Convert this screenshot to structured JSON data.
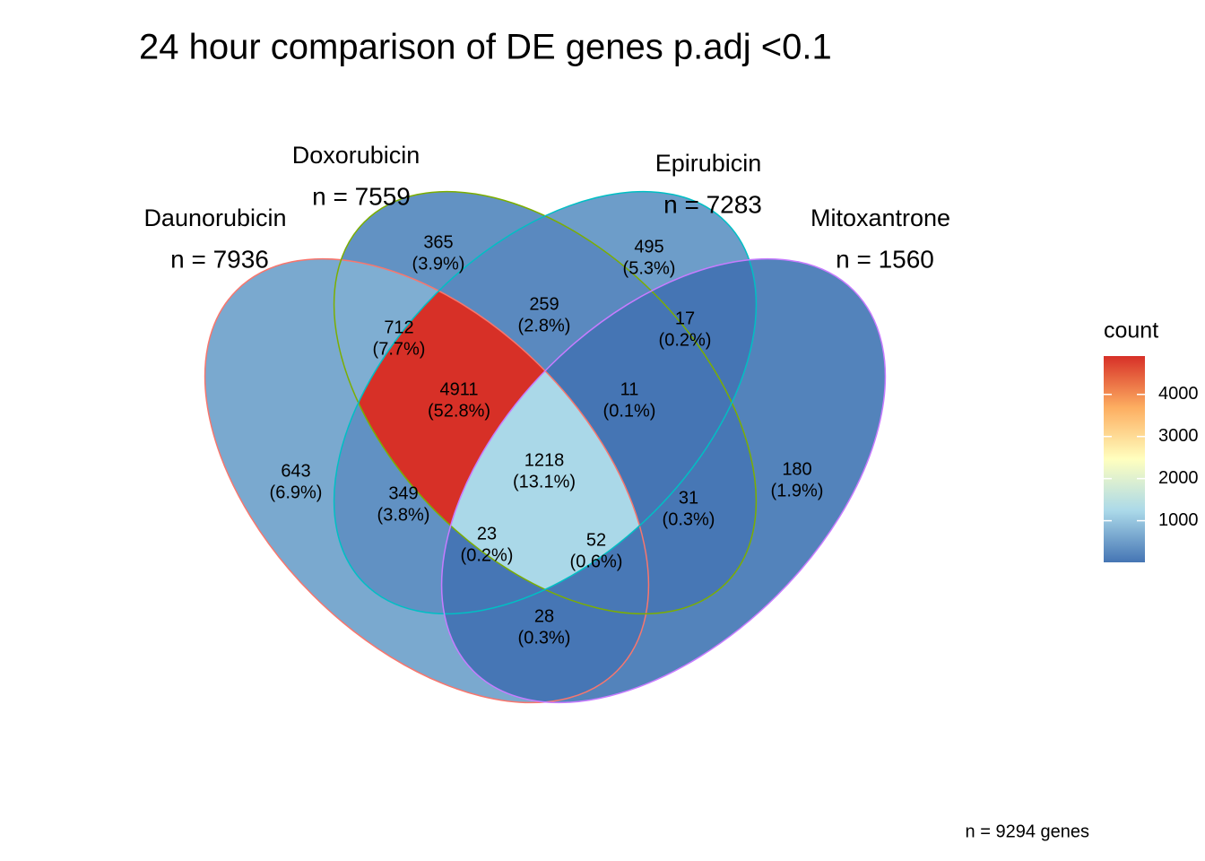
{
  "chart_data": {
    "type": "venn",
    "title": "24 hour comparison of DE genes p.adj <0.1",
    "sets": [
      {
        "name": "Daunorubicin",
        "size": {
          "value": 7936,
          "label": "n = 7936"
        },
        "color": "#f8766d"
      },
      {
        "name": "Doxorubicin",
        "size": {
          "value": 7559,
          "label": "n = 7559"
        },
        "color": "#7cae00"
      },
      {
        "name": "Epirubicin",
        "size": {
          "value": 7283,
          "label": "n = 7283"
        },
        "color": "#00bfc4"
      },
      {
        "name": "Mitoxantrone",
        "size": {
          "value": 1560,
          "label": "n = 1560"
        },
        "color": "#c77cff"
      }
    ],
    "regions": {
      "values": [
        643,
        365,
        495,
        180,
        712,
        259,
        17,
        349,
        31,
        4911,
        11,
        23,
        52,
        1218,
        28
      ],
      "percents": [
        {
          "value": 6.9,
          "label": "(6.9%)"
        },
        {
          "value": 3.9,
          "label": "(3.9%)"
        },
        {
          "value": 5.3,
          "label": "(5.3%)"
        },
        {
          "value": 1.9,
          "label": "(1.9%)"
        },
        {
          "value": 7.7,
          "label": "(7.7%)"
        },
        {
          "value": 2.8,
          "label": "(2.8%)"
        },
        {
          "value": 0.2,
          "label": "(0.2%)"
        },
        {
          "value": 3.8,
          "label": "(3.8%)"
        },
        {
          "value": 0.3,
          "label": "(0.3%)"
        },
        {
          "value": 52.8,
          "label": "(52.8%)"
        },
        {
          "value": 0.1,
          "label": "(0.1%)"
        },
        {
          "value": 0.2,
          "label": "(0.2%)"
        },
        {
          "value": 0.6,
          "label": "(0.6%)"
        },
        {
          "value": 13.1,
          "label": "(13.1%)"
        },
        {
          "value": 0.3,
          "label": "(0.3%)"
        }
      ]
    },
    "colorbar": {
      "title": "count",
      "limits": [
        11,
        4911
      ],
      "ticks": [
        1000,
        2000,
        3000,
        4000
      ],
      "colors": [
        "#4575b4",
        "#abd9e9",
        "#ffffbf",
        "#fdae61",
        "#d73027"
      ]
    },
    "total": {
      "value": 9294,
      "label": "n = 9294 genes"
    }
  }
}
